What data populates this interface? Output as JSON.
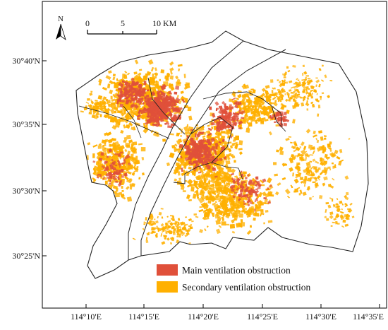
{
  "north_arrow": {
    "label": "N"
  },
  "scale_bar": {
    "ticks": [
      "0",
      "5",
      "10 KM"
    ]
  },
  "latitude_labels": [
    "30°40'N",
    "30°35'N",
    "30°30'N",
    "30°25'N"
  ],
  "longitude_labels": [
    "114°10'E",
    "114°15'E",
    "114°20'E",
    "114°25'E",
    "114°30'E",
    "114°35'E"
  ],
  "legend": {
    "items": [
      {
        "label": "Main ventilation obstruction",
        "color": "#e0503a"
      },
      {
        "label": "Secondary ventilation obstruction",
        "color": "#ffb000"
      }
    ]
  },
  "colors": {
    "main": "#e0503a",
    "secondary": "#ffb000",
    "boundary": "#222222"
  }
}
